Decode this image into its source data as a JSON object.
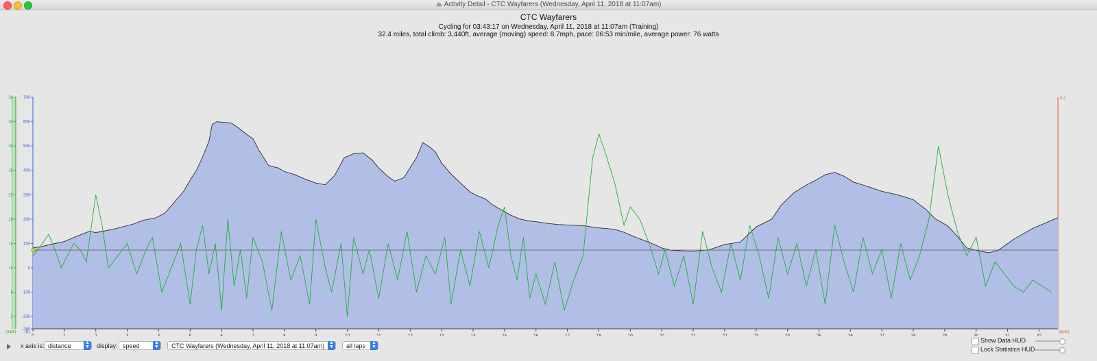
{
  "window": {
    "title": "Activity Detail - CTC Wayfarers  (Wednesday, April 11, 2018 at 11:07am)"
  },
  "header": {
    "title": "CTC Wayfarers",
    "line1": "Cycling for 03:43:17 on Wednesday, April 11, 2018 at 11:07am (Training)",
    "line2": "32.4 miles, total climb: 3,440ft, average (moving) speed: 8.7mph, pace: 06:53 min/mile, average power: 76 watts"
  },
  "controls": {
    "x_axis_label": "x axis is:",
    "x_axis_value": "distance",
    "display_label": "display:",
    "display_value": "speed",
    "activity_value": "CTC Wayfarers  (Wednesday, April 11, 2018 at 11:07am)",
    "laps_value": "all laps",
    "show_data_hud": "Show Data HUD",
    "lock_stats_hud": "Lock Statistics HUD"
  },
  "colors": {
    "altitude_fill": "#b1bfe6",
    "altitude_line": "#2b2b33",
    "speed_line": "#1fae3b",
    "speed_axis": "#2aaa3a",
    "altitude_axis": "#3f5ed9",
    "right_axis": "#e05a3a"
  },
  "chart_data": {
    "type": "area",
    "xlabel": "",
    "xlim": [
      0,
      32.6
    ],
    "x_ticks": [
      0,
      1,
      2,
      3,
      4,
      5,
      6,
      7,
      8,
      9,
      10,
      11,
      12,
      13,
      14,
      15,
      16,
      17,
      18,
      19,
      20,
      21,
      22,
      23,
      24,
      25,
      26,
      27,
      28,
      29,
      30,
      31,
      32
    ],
    "left_speed_axis": {
      "unit": "(mph)",
      "ticks": [
        2,
        6,
        10,
        14,
        18,
        22,
        26,
        30,
        34,
        38
      ]
    },
    "left_altitude_axis": {
      "unit": "(ft)",
      "ticks": [
        -250,
        -200,
        -100,
        0,
        100,
        200,
        300,
        400,
        500,
        600,
        700
      ]
    },
    "right_axis": {
      "unit": "(bpm)",
      "top_label": "0.2"
    },
    "guide_line": {
      "y": 73
    },
    "series": [
      {
        "kind": "altitude",
        "x": [
          0,
          0.3,
          0.7,
          1.0,
          1.4,
          1.8,
          2.0,
          2.3,
          2.6,
          2.9,
          3.2,
          3.5,
          3.9,
          4.2,
          4.5,
          4.8,
          5.0,
          5.2,
          5.4,
          5.6,
          5.7,
          5.85,
          6.0,
          6.3,
          6.5,
          6.8,
          7.0,
          7.2,
          7.5,
          7.8,
          8.0,
          8.3,
          8.7,
          9.0,
          9.3,
          9.6,
          9.9,
          10.2,
          10.5,
          10.8,
          11.0,
          11.3,
          11.5,
          11.8,
          12.0,
          12.2,
          12.4,
          12.6,
          12.8,
          13.0,
          13.3,
          13.6,
          13.9,
          14.1,
          14.4,
          14.6,
          14.9,
          15.2,
          15.5,
          15.8,
          16.1,
          16.4,
          16.7,
          17.0,
          17.3,
          17.6,
          17.9,
          18.2,
          18.5,
          18.8,
          19.2,
          19.6,
          20.0,
          20.3,
          20.6,
          21.0,
          21.5,
          22.0,
          22.5,
          23.0,
          23.5,
          23.8,
          24.2,
          24.6,
          24.9,
          25.2,
          25.5,
          25.8,
          26.1,
          26.5,
          27.0,
          27.5,
          28.0,
          28.4,
          28.7,
          29.1,
          29.4,
          29.7,
          30.0,
          30.4,
          30.7,
          31.2,
          31.8,
          32.6
        ],
        "values": [
          82,
          88,
          100,
          108,
          130,
          150,
          145,
          152,
          160,
          170,
          180,
          195,
          205,
          225,
          270,
          315,
          360,
          400,
          455,
          520,
          588,
          600,
          598,
          595,
          578,
          548,
          530,
          480,
          420,
          410,
          395,
          384,
          362,
          348,
          341,
          380,
          452,
          468,
          472,
          441,
          410,
          374,
          356,
          370,
          412,
          452,
          514,
          498,
          476,
          430,
          385,
          348,
          312,
          298,
          282,
          260,
          238,
          216,
          200,
          192,
          188,
          182,
          178,
          176,
          174,
          172,
          165,
          162,
          158,
          146,
          124,
          105,
          82,
          72,
          70,
          68,
          74,
          96,
          106,
          168,
          200,
          258,
          308,
          340,
          360,
          382,
          392,
          376,
          352,
          336,
          314,
          300,
          280,
          240,
          201,
          172,
          130,
          82,
          72,
          62,
          72,
          118,
          162,
          206
        ]
      },
      {
        "kind": "speed",
        "x": [
          0,
          0.3,
          0.5,
          0.7,
          0.9,
          1.1,
          1.3,
          1.5,
          1.7,
          2.0,
          2.2,
          2.4,
          2.7,
          3.0,
          3.3,
          3.6,
          3.8,
          4.1,
          4.4,
          4.7,
          5.0,
          5.2,
          5.4,
          5.6,
          5.8,
          6.0,
          6.2,
          6.4,
          6.6,
          6.8,
          7.0,
          7.3,
          7.6,
          7.9,
          8.2,
          8.5,
          8.8,
          9.0,
          9.3,
          9.5,
          9.8,
          10.0,
          10.2,
          10.5,
          10.7,
          11.0,
          11.3,
          11.6,
          11.9,
          12.2,
          12.5,
          12.8,
          13.1,
          13.3,
          13.6,
          13.9,
          14.2,
          14.5,
          14.8,
          15.0,
          15.2,
          15.4,
          15.6,
          15.8,
          16.0,
          16.3,
          16.6,
          16.9,
          17.2,
          17.5,
          17.8,
          18.0,
          18.2,
          18.5,
          18.8,
          19.0,
          19.3,
          19.6,
          19.9,
          20.1,
          20.4,
          20.7,
          21.0,
          21.3,
          21.6,
          21.9,
          22.2,
          22.5,
          22.8,
          23.1,
          23.4,
          23.7,
          24.0,
          24.3,
          24.6,
          24.9,
          25.2,
          25.5,
          25.8,
          26.1,
          26.4,
          26.7,
          27.0,
          27.3,
          27.6,
          27.9,
          28.2,
          28.5,
          28.8,
          29.1,
          29.4,
          29.7,
          30.0,
          30.3,
          30.6,
          30.9,
          31.2,
          31.5,
          31.8,
          32.1,
          32.4
        ],
        "values": [
          12,
          14,
          15.5,
          13,
          10,
          12,
          14,
          13,
          11,
          22,
          17,
          10,
          12,
          14,
          9,
          13,
          15,
          6,
          10,
          14,
          4,
          13,
          17,
          9,
          14,
          3,
          18,
          7,
          13,
          5,
          15,
          11,
          3,
          16,
          8,
          12,
          4,
          18,
          10,
          6,
          14,
          2,
          15,
          9,
          13,
          5,
          14,
          8,
          16,
          6,
          12,
          9,
          15,
          4,
          13,
          7,
          16,
          10,
          17,
          20,
          12,
          8,
          15,
          5,
          9,
          4,
          11,
          3,
          8,
          12,
          28,
          32,
          29,
          24,
          17,
          20,
          18,
          14,
          9,
          13,
          7,
          12,
          4,
          16,
          10,
          6,
          14,
          8,
          17,
          12,
          5,
          15,
          9,
          14,
          7,
          13,
          4,
          17,
          11,
          6,
          15,
          9,
          13,
          5,
          14,
          8,
          12,
          18,
          30,
          22,
          16,
          12,
          15,
          7,
          11,
          9,
          7,
          6,
          8,
          7,
          6
        ]
      }
    ]
  }
}
